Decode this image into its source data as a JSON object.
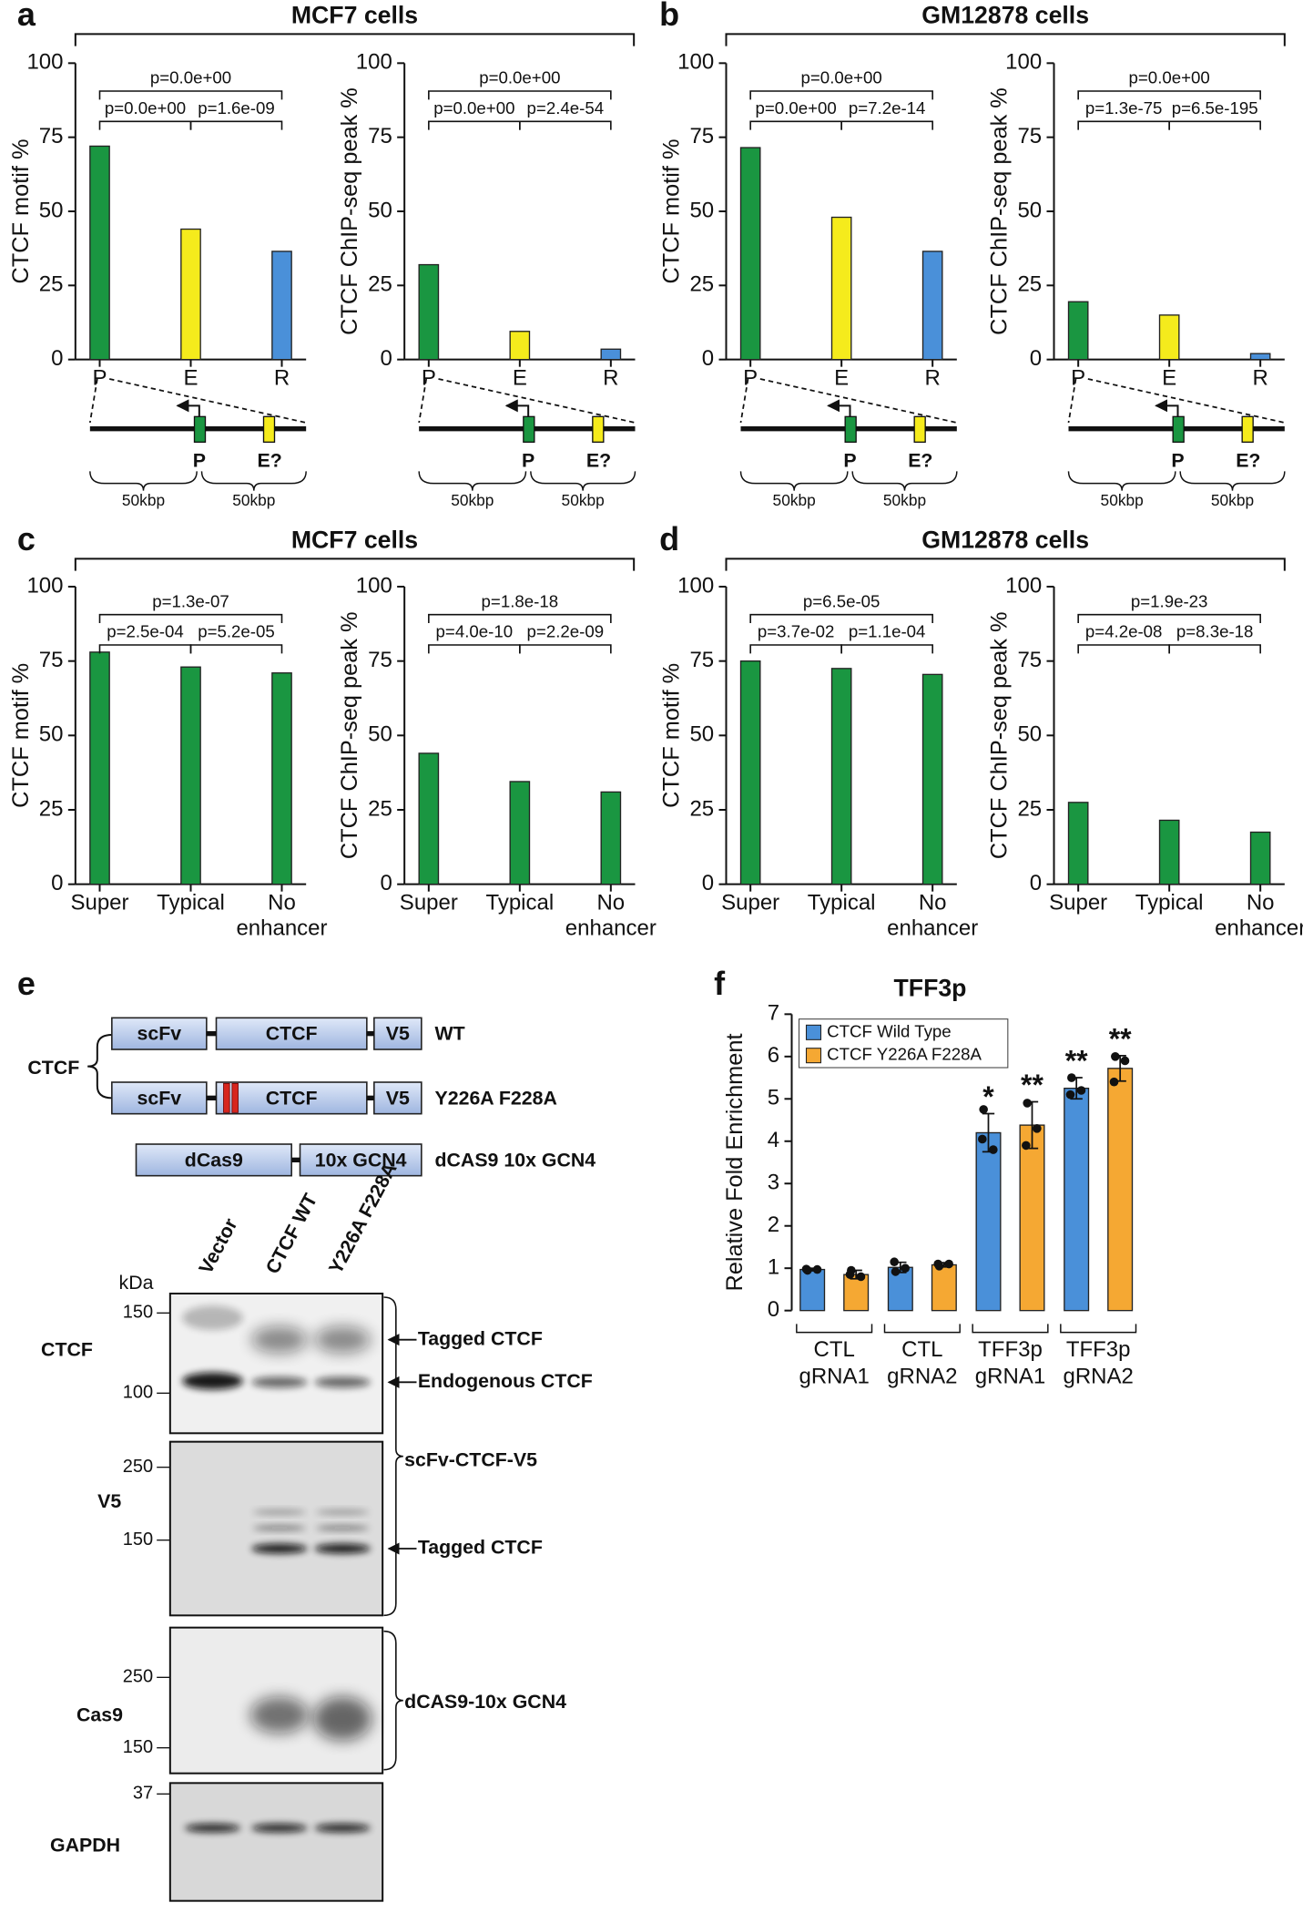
{
  "panel_labels": [
    "a",
    "b",
    "c",
    "d",
    "e",
    "f"
  ],
  "groups": [
    "MCF7 cells",
    "GM12878 cells",
    "MCF7 cells",
    "GM12878 cells"
  ],
  "schematic": {
    "promoter": "P",
    "enhancer": "E?",
    "distance": "50kbp"
  },
  "chart_data": [
    {
      "type": "bar",
      "ylabel": "CTCF motif %",
      "categories": [
        [
          "P"
        ],
        [
          "E"
        ],
        [
          "R"
        ]
      ],
      "values": [
        72,
        44,
        36.5
      ],
      "colors": [
        "#1a9641",
        "#f5eb1c",
        "#4a90d9"
      ],
      "ylim": [
        0,
        100
      ],
      "yticks": [
        0,
        25,
        50,
        75,
        100
      ],
      "comparisons": [
        {
          "label": "p=0.0e+00",
          "pair": [
            0,
            2
          ]
        },
        {
          "label": "p=0.0e+00",
          "pair": [
            0,
            1
          ]
        },
        {
          "label": "p=1.6e-09",
          "pair": [
            1,
            2
          ]
        }
      ]
    },
    {
      "type": "bar",
      "ylabel": "CTCF ChIP-seq peak %",
      "categories": [
        [
          "P"
        ],
        [
          "E"
        ],
        [
          "R"
        ]
      ],
      "values": [
        32,
        9.5,
        3.5
      ],
      "colors": [
        "#1a9641",
        "#f5eb1c",
        "#4a90d9"
      ],
      "ylim": [
        0,
        100
      ],
      "yticks": [
        0,
        25,
        50,
        75,
        100
      ],
      "comparisons": [
        {
          "label": "p=0.0e+00",
          "pair": [
            0,
            2
          ]
        },
        {
          "label": "p=0.0e+00",
          "pair": [
            0,
            1
          ]
        },
        {
          "label": "p=2.4e-54",
          "pair": [
            1,
            2
          ]
        }
      ]
    },
    {
      "type": "bar",
      "ylabel": "CTCF motif %",
      "categories": [
        [
          "P"
        ],
        [
          "E"
        ],
        [
          "R"
        ]
      ],
      "values": [
        71.5,
        48,
        36.5
      ],
      "colors": [
        "#1a9641",
        "#f5eb1c",
        "#4a90d9"
      ],
      "ylim": [
        0,
        100
      ],
      "yticks": [
        0,
        25,
        50,
        75,
        100
      ],
      "comparisons": [
        {
          "label": "p=0.0e+00",
          "pair": [
            0,
            2
          ]
        },
        {
          "label": "p=0.0e+00",
          "pair": [
            0,
            1
          ]
        },
        {
          "label": "p=7.2e-14",
          "pair": [
            1,
            2
          ]
        }
      ]
    },
    {
      "type": "bar",
      "ylabel": "CTCF ChIP-seq peak %",
      "categories": [
        [
          "P"
        ],
        [
          "E"
        ],
        [
          "R"
        ]
      ],
      "values": [
        19.5,
        15,
        2
      ],
      "colors": [
        "#1a9641",
        "#f5eb1c",
        "#4a90d9"
      ],
      "ylim": [
        0,
        100
      ],
      "yticks": [
        0,
        25,
        50,
        75,
        100
      ],
      "comparisons": [
        {
          "label": "p=0.0e+00",
          "pair": [
            0,
            2
          ]
        },
        {
          "label": "p=1.3e-75",
          "pair": [
            0,
            1
          ]
        },
        {
          "label": "p=6.5e-195",
          "pair": [
            1,
            2
          ]
        }
      ]
    },
    {
      "type": "bar",
      "ylabel": "CTCF motif %",
      "categories": [
        [
          "Super"
        ],
        [
          "Typical"
        ],
        [
          "No",
          "enhancer"
        ]
      ],
      "values": [
        78,
        73,
        71
      ],
      "colors": [
        "#1a9641",
        "#1a9641",
        "#1a9641"
      ],
      "ylim": [
        0,
        100
      ],
      "yticks": [
        0,
        25,
        50,
        75,
        100
      ],
      "comparisons": [
        {
          "label": "p=1.3e-07",
          "pair": [
            0,
            2
          ]
        },
        {
          "label": "p=2.5e-04",
          "pair": [
            0,
            1
          ]
        },
        {
          "label": "p=5.2e-05",
          "pair": [
            1,
            2
          ]
        }
      ]
    },
    {
      "type": "bar",
      "ylabel": "CTCF ChIP-seq peak %",
      "categories": [
        [
          "Super"
        ],
        [
          "Typical"
        ],
        [
          "No",
          "enhancer"
        ]
      ],
      "values": [
        44,
        34.5,
        31
      ],
      "colors": [
        "#1a9641",
        "#1a9641",
        "#1a9641"
      ],
      "ylim": [
        0,
        100
      ],
      "yticks": [
        0,
        25,
        50,
        75,
        100
      ],
      "comparisons": [
        {
          "label": "p=1.8e-18",
          "pair": [
            0,
            2
          ]
        },
        {
          "label": "p=4.0e-10",
          "pair": [
            0,
            1
          ]
        },
        {
          "label": "p=2.2e-09",
          "pair": [
            1,
            2
          ]
        }
      ]
    },
    {
      "type": "bar",
      "ylabel": "CTCF motif %",
      "categories": [
        [
          "Super"
        ],
        [
          "Typical"
        ],
        [
          "No",
          "enhancer"
        ]
      ],
      "values": [
        75,
        72.5,
        70.5
      ],
      "colors": [
        "#1a9641",
        "#1a9641",
        "#1a9641"
      ],
      "ylim": [
        0,
        100
      ],
      "yticks": [
        0,
        25,
        50,
        75,
        100
      ],
      "comparisons": [
        {
          "label": "p=6.5e-05",
          "pair": [
            0,
            2
          ]
        },
        {
          "label": "p=3.7e-02",
          "pair": [
            0,
            1
          ]
        },
        {
          "label": "p=1.1e-04",
          "pair": [
            1,
            2
          ]
        }
      ]
    },
    {
      "type": "bar",
      "ylabel": "CTCF ChIP-seq peak %",
      "categories": [
        [
          "Super"
        ],
        [
          "Typical"
        ],
        [
          "No",
          "enhancer"
        ]
      ],
      "values": [
        27.5,
        21.5,
        17.5
      ],
      "colors": [
        "#1a9641",
        "#1a9641",
        "#1a9641"
      ],
      "ylim": [
        0,
        100
      ],
      "yticks": [
        0,
        25,
        50,
        75,
        100
      ],
      "comparisons": [
        {
          "label": "p=1.9e-23",
          "pair": [
            0,
            2
          ]
        },
        {
          "label": "p=4.2e-08",
          "pair": [
            0,
            1
          ]
        },
        {
          "label": "p=8.3e-18",
          "pair": [
            1,
            2
          ]
        }
      ]
    },
    {
      "type": "grouped_bar",
      "title": "TFF3p",
      "ylabel": "Relative Fold Enrichment",
      "categories": [
        [
          "CTL",
          "gRNA1"
        ],
        [
          "CTL",
          "gRNA2"
        ],
        [
          "TFF3p",
          "gRNA1"
        ],
        [
          "TFF3p",
          "gRNA2"
        ]
      ],
      "ylim": [
        0,
        7
      ],
      "yticks": [
        0,
        1,
        2,
        3,
        4,
        5,
        6,
        7
      ],
      "series": [
        {
          "name": "CTCF Wild Type",
          "color": "#4a90d9",
          "values": [
            0.97,
            1.02,
            4.2,
            5.25
          ],
          "errors": [
            0.03,
            0.12,
            0.45,
            0.25
          ],
          "points": [
            [
              0.95,
              0.97,
              0.98
            ],
            [
              0.92,
              1.0,
              1.15
            ],
            [
              4.75,
              3.8,
              4.05
            ],
            [
              5.5,
              5.2,
              5.1
            ]
          ]
        },
        {
          "name": "CTCF Y226A F228A",
          "color": "#f5a833",
          "values": [
            0.85,
            1.08,
            4.38,
            5.72
          ],
          "errors": [
            0.1,
            0.05,
            0.55,
            0.3
          ],
          "points": [
            [
              0.95,
              0.8,
              0.85
            ],
            [
              1.05,
              1.1,
              1.1
            ],
            [
              4.9,
              4.3,
              3.9
            ],
            [
              6.0,
              5.9,
              5.4
            ]
          ]
        }
      ],
      "annotations": [
        {
          "text": "*",
          "series": 0,
          "category": 2
        },
        {
          "text": "**",
          "series": 1,
          "category": 2
        },
        {
          "text": "**",
          "series": 0,
          "category": 3
        },
        {
          "text": "**",
          "series": 1,
          "category": 3
        }
      ]
    }
  ],
  "panel_e": {
    "construct_group": "CTCF",
    "constructs": [
      {
        "parts": [
          "scFv",
          "CTCF",
          "V5"
        ],
        "name": "WT"
      },
      {
        "parts": [
          "scFv",
          "CTCF",
          "V5"
        ],
        "name": "Y226A F228A"
      },
      {
        "parts": [
          "dCas9",
          "10x GCN4"
        ],
        "name": "dCAS9 10x GCN4"
      }
    ],
    "lanes": [
      "Vector",
      "CTCF WT",
      "Y226A F228A"
    ],
    "mw_unit": "kDa",
    "blots": [
      {
        "name": "CTCF",
        "markers": [
          150,
          100
        ]
      },
      {
        "name": "V5",
        "markers": [
          250,
          150
        ]
      },
      {
        "name": "Cas9",
        "markers": [
          250,
          150
        ]
      },
      {
        "name": "GAPDH",
        "markers": [
          37
        ]
      }
    ],
    "annotations": [
      "Tagged CTCF",
      "Endogenous CTCF",
      "scFv-CTCF-V5",
      "Tagged CTCF",
      "dCAS9-10x GCN4"
    ]
  }
}
